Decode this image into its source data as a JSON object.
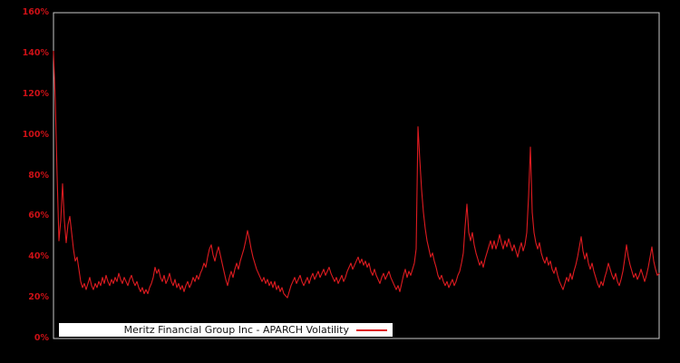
{
  "chart": {
    "colors": {
      "background": "#000000",
      "line": "#de1b20",
      "axis_label": "#cc1016",
      "plot_border": "#c9c9c9",
      "legend_background": "#ffffff",
      "legend_text": "#141414"
    }
  },
  "chart_data": {
    "type": "line",
    "title": "",
    "xlabel": "",
    "ylabel": "",
    "unit": "percent",
    "ylim": [
      0,
      160
    ],
    "grid": false,
    "x_axis_labels_visible": false,
    "legend_position": "bottom-center-inside",
    "y_ticks": [
      {
        "value": 0,
        "label": "0%"
      },
      {
        "value": 20,
        "label": "20%"
      },
      {
        "value": 40,
        "label": "40%"
      },
      {
        "value": 60,
        "label": "60%"
      },
      {
        "value": 80,
        "label": "80%"
      },
      {
        "value": 100,
        "label": "100%"
      },
      {
        "value": 120,
        "label": "120%"
      },
      {
        "value": 140,
        "label": "140%"
      },
      {
        "value": 160,
        "label": "160%"
      }
    ],
    "series": [
      {
        "name": "Meritz Financial Group Inc - APARCH Volatility",
        "values": [
          141,
          116,
          80,
          48,
          58,
          76,
          58,
          47,
          56,
          60,
          52,
          44,
          38,
          40,
          34,
          28,
          25,
          27,
          24,
          27,
          30,
          26,
          24,
          27,
          25,
          28,
          26,
          30,
          27,
          31,
          28,
          26,
          29,
          27,
          30,
          28,
          32,
          29,
          27,
          30,
          28,
          26,
          29,
          31,
          28,
          26,
          28,
          25,
          23,
          25,
          22,
          24,
          22,
          25,
          27,
          30,
          35,
          32,
          34,
          30,
          28,
          31,
          27,
          29,
          32,
          28,
          26,
          29,
          25,
          27,
          24,
          26,
          23,
          26,
          28,
          25,
          27,
          30,
          28,
          31,
          29,
          32,
          34,
          37,
          35,
          40,
          44,
          46,
          41,
          38,
          42,
          45,
          41,
          37,
          33,
          29,
          26,
          30,
          33,
          30,
          34,
          37,
          34,
          38,
          41,
          44,
          48,
          53,
          49,
          44,
          40,
          37,
          34,
          32,
          30,
          28,
          30,
          27,
          29,
          26,
          28,
          25,
          28,
          24,
          26,
          23,
          25,
          22,
          21,
          20,
          23,
          26,
          28,
          30,
          27,
          29,
          31,
          28,
          26,
          28,
          30,
          27,
          30,
          32,
          29,
          31,
          33,
          30,
          32,
          34,
          31,
          33,
          35,
          32,
          30,
          28,
          30,
          27,
          29,
          31,
          28,
          30,
          33,
          35,
          37,
          34,
          36,
          38,
          40,
          37,
          39,
          36,
          38,
          35,
          37,
          33,
          31,
          34,
          31,
          29,
          27,
          30,
          32,
          29,
          31,
          33,
          30,
          28,
          26,
          24,
          26,
          23,
          27,
          31,
          34,
          30,
          33,
          31,
          34,
          37,
          44,
          104,
          88,
          73,
          62,
          54,
          48,
          44,
          40,
          42,
          38,
          35,
          31,
          29,
          31,
          28,
          26,
          28,
          25,
          27,
          29,
          26,
          28,
          31,
          33,
          37,
          42,
          55,
          66,
          52,
          48,
          52,
          46,
          42,
          39,
          36,
          38,
          35,
          39,
          42,
          45,
          48,
          44,
          48,
          44,
          47,
          51,
          47,
          44,
          48,
          45,
          49,
          46,
          43,
          46,
          43,
          40,
          44,
          47,
          43,
          46,
          52,
          70,
          94,
          62,
          52,
          47,
          44,
          47,
          42,
          39,
          37,
          40,
          36,
          38,
          34,
          32,
          35,
          31,
          28,
          26,
          24,
          27,
          30,
          28,
          32,
          29,
          33,
          36,
          40,
          45,
          50,
          43,
          39,
          42,
          37,
          34,
          37,
          33,
          30,
          27,
          25,
          28,
          26,
          30,
          33,
          37,
          34,
          31,
          29,
          32,
          28,
          26,
          29,
          33,
          39,
          46,
          40,
          36,
          33,
          30,
          32,
          29,
          31,
          34,
          31,
          28,
          31,
          35,
          40,
          45,
          38,
          34,
          31,
          32
        ]
      }
    ]
  }
}
